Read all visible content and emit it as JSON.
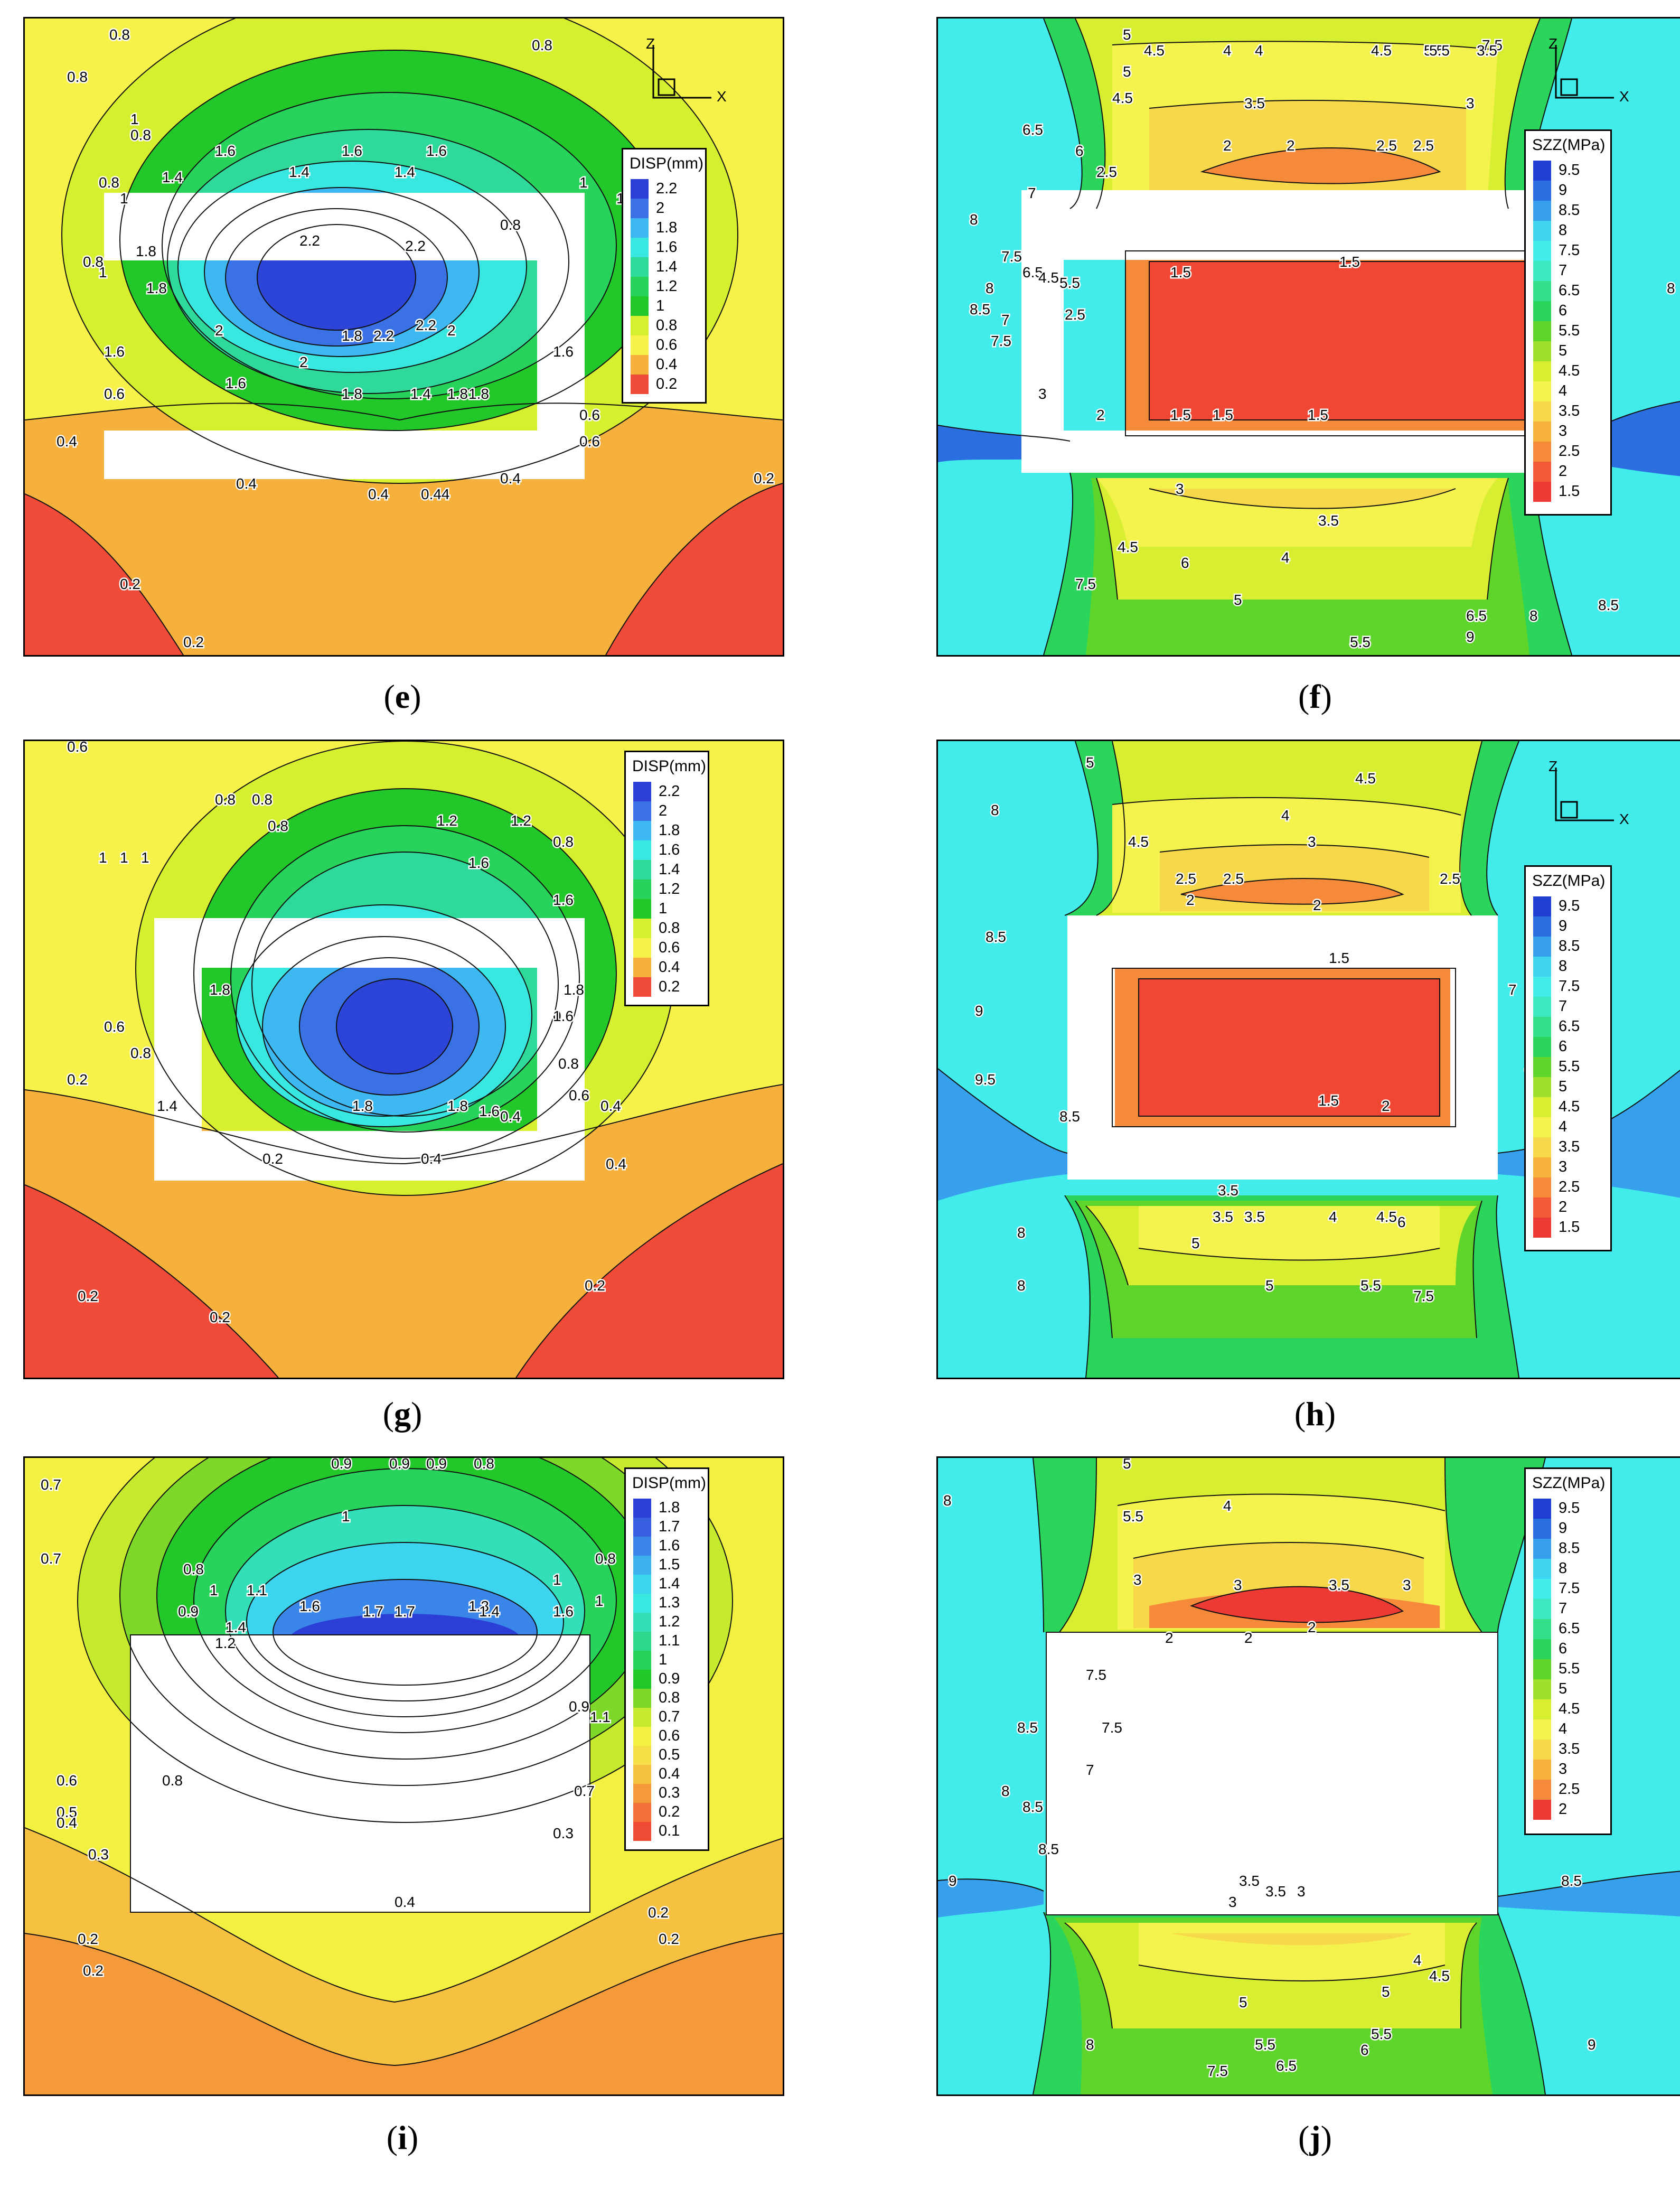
{
  "captions": [
    "e",
    "f",
    "g",
    "h",
    "i",
    "j"
  ],
  "axes": {
    "z": "Z",
    "x": "X"
  },
  "legend_disp_title": "DISP(mm)",
  "legend_szz_title": "SZZ(MPa)",
  "panels": [
    {
      "id": "e",
      "kind": "DISP",
      "legend_levels": [
        "2.2",
        "2",
        "1.8",
        "1.6",
        "1.4",
        "1.2",
        "1",
        "0.8",
        "0.6",
        "0.4",
        "0.2"
      ],
      "legend_colors": [
        "#2b3fd6",
        "#3a72e6",
        "#3db8f0",
        "#38e8e0",
        "#2fd99a",
        "#27d35a",
        "#22c82a",
        "#d6ef2e",
        "#f7f24a",
        "#f6b13d",
        "#f04a38"
      ],
      "contour_labels": [
        "0.8",
        "0.8",
        "0.8",
        "0.8",
        "0.8",
        "1",
        "1",
        "1.4",
        "1.4",
        "1.4",
        "1.6",
        "1.6",
        "1.6",
        "1.8",
        "1.8",
        "1.8",
        "2",
        "2",
        "2.2",
        "2.2",
        "2.2",
        "2.2",
        "2",
        "1.8",
        "1.6",
        "1.6",
        "1.6",
        "1.4",
        "1.8",
        "1.8",
        "1",
        "1",
        "0.6",
        "0.8",
        "0.6",
        "0.8",
        "0.4",
        "0.4",
        "0.4",
        "0.44",
        "0.4",
        "0.2",
        "0.2",
        "0.2",
        "0.6",
        "1",
        "0.8"
      ]
    },
    {
      "id": "f",
      "kind": "SZZ",
      "legend_levels": [
        "9.5",
        "9",
        "8.5",
        "8",
        "7.5",
        "7",
        "6.5",
        "6",
        "5.5",
        "5",
        "4.5",
        "4",
        "3.5",
        "3",
        "2.5",
        "2",
        "1.5"
      ],
      "legend_colors": [
        "#1f3fd0",
        "#2a6ee0",
        "#36a0ec",
        "#3fd4f0",
        "#41ecea",
        "#3ee8c0",
        "#35de8a",
        "#2bd45a",
        "#5fd52c",
        "#9fe02c",
        "#d8ee30",
        "#f4f24c",
        "#f7d84a",
        "#f7b23e",
        "#f58a3a",
        "#f25a38",
        "#ee3a34"
      ],
      "contour_labels": [
        "5",
        "4.5",
        "4",
        "4",
        "4.5",
        "5.5",
        "7.5",
        "5",
        "4.5",
        "3.5",
        "3",
        "3.5",
        "5.5",
        "6",
        "2",
        "2",
        "2.5",
        "2.5",
        "2.5",
        "7",
        "6.5",
        "7.5",
        "8",
        "8.5",
        "8",
        "1.5",
        "1.5",
        "2.5",
        "6.5",
        "7.5",
        "5.5",
        "4.5",
        "3",
        "2",
        "1.5",
        "1.5",
        "1.5",
        "7",
        "8.5",
        "8",
        "3",
        "3.5",
        "4",
        "5",
        "5.5",
        "4.5",
        "6",
        "6.5",
        "7.5",
        "8",
        "8.5",
        "9"
      ]
    },
    {
      "id": "g",
      "kind": "DISP",
      "legend_levels": [
        "2.2",
        "2",
        "1.8",
        "1.6",
        "1.4",
        "1.2",
        "1",
        "0.8",
        "0.6",
        "0.4",
        "0.2"
      ],
      "legend_colors": [
        "#2b3fd6",
        "#3a72e6",
        "#3db8f0",
        "#38e8e0",
        "#2fd99a",
        "#27d35a",
        "#22c82a",
        "#d6ef2e",
        "#f7f24a",
        "#f6b13d",
        "#f04a38"
      ],
      "contour_labels": [
        "0.6",
        "0.8",
        "0.8",
        "0.8",
        "1",
        "1",
        "1",
        "1.2",
        "1.2",
        "1.6",
        "1.6",
        "0.8",
        "0.6",
        "0.6",
        "0.8",
        "1.8",
        "1.8",
        "1.4",
        "1.8",
        "1.8",
        "1.6",
        "1",
        "0.8",
        "0.6",
        "0.4",
        "0.4",
        "0.4",
        "0.4",
        "0.2",
        "0.2",
        "0.2",
        "0.2",
        "0.2"
      ]
    },
    {
      "id": "h",
      "kind": "SZZ",
      "legend_levels": [
        "9.5",
        "9",
        "8.5",
        "8",
        "7.5",
        "7",
        "6.5",
        "6",
        "5.5",
        "5",
        "4.5",
        "4",
        "3.5",
        "3",
        "2.5",
        "2",
        "1.5"
      ],
      "legend_colors": [
        "#1f3fd0",
        "#2a6ee0",
        "#36a0ec",
        "#3fd4f0",
        "#41ecea",
        "#3ee8c0",
        "#35de8a",
        "#2bd45a",
        "#5fd52c",
        "#9fe02c",
        "#d8ee30",
        "#f4f24c",
        "#f7d84a",
        "#f7b23e",
        "#f58a3a",
        "#f25a38",
        "#ee3a34"
      ],
      "contour_labels": [
        "5",
        "4.5",
        "4",
        "4.5",
        "3",
        "2.5",
        "2.5",
        "2.5",
        "2",
        "2",
        "1.5",
        "1.5",
        "2",
        "8",
        "8.5",
        "9",
        "9.5",
        "8.5",
        "7.5",
        "7",
        "3.5",
        "3.5",
        "3.5",
        "4",
        "4.5",
        "5",
        "5",
        "5.5",
        "6",
        "8",
        "8",
        "7.5"
      ]
    },
    {
      "id": "i",
      "kind": "DISP",
      "legend_levels": [
        "1.8",
        "1.7",
        "1.6",
        "1.5",
        "1.4",
        "1.3",
        "1.2",
        "1.1",
        "1",
        "0.9",
        "0.8",
        "0.7",
        "0.6",
        "0.5",
        "0.4",
        "0.3",
        "0.2",
        "0.1"
      ],
      "legend_colors": [
        "#2b3fd6",
        "#3a5ee0",
        "#3a86e8",
        "#3db0ee",
        "#3dd4f0",
        "#38e8e0",
        "#33dfb8",
        "#2dd88a",
        "#27d35a",
        "#22c82a",
        "#7ed82a",
        "#c6ea2e",
        "#f2f040",
        "#f6e048",
        "#f6c040",
        "#f59a3a",
        "#f2703a",
        "#ee4a36"
      ],
      "contour_labels": [
        "0.9",
        "0.9",
        "0.9",
        "0.8",
        "0.7",
        "0.7",
        "1",
        "0.8",
        "0.9",
        "1",
        "1.1",
        "1.2",
        "1.4",
        "1.6",
        "1.7",
        "1.7",
        "1.6",
        "1.3",
        "1.4",
        "1",
        "0.8",
        "1",
        "1.1",
        "0.9",
        "0.8",
        "0.7",
        "0.6",
        "0.5",
        "0.4",
        "0.3",
        "0.4",
        "0.3",
        "0.2",
        "0.2",
        "0.2",
        "0.2"
      ]
    },
    {
      "id": "j",
      "kind": "SZZ",
      "legend_levels": [
        "9.5",
        "9",
        "8.5",
        "8",
        "7.5",
        "7",
        "6.5",
        "6",
        "5.5",
        "5",
        "4.5",
        "4",
        "3.5",
        "3",
        "2.5",
        "2"
      ],
      "legend_colors": [
        "#1f3fd0",
        "#2a6ee0",
        "#36a0ec",
        "#3fd4f0",
        "#41ecea",
        "#3ee8c0",
        "#35de8a",
        "#2bd45a",
        "#5fd52c",
        "#9fe02c",
        "#d8ee30",
        "#f4f24c",
        "#f7d84a",
        "#f7b23e",
        "#f58a3a",
        "#ee3a34"
      ],
      "contour_labels": [
        "5",
        "5.5",
        "4",
        "3",
        "3",
        "3.5",
        "3",
        "2",
        "2",
        "2",
        "8",
        "7.5",
        "8.5",
        "8",
        "7.5",
        "7",
        "8.5",
        "8.5",
        "9",
        "3.5",
        "3",
        "3.5",
        "3",
        "4",
        "4.5",
        "5",
        "5.5",
        "5",
        "5.5",
        "6",
        "6.5",
        "7.5",
        "8",
        "8.5",
        "9"
      ]
    }
  ]
}
